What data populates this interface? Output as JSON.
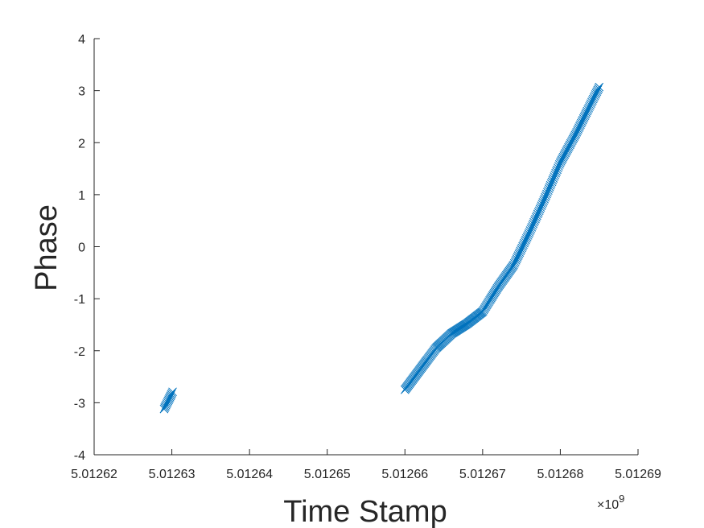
{
  "chart_data": {
    "type": "scatter",
    "marker": "x",
    "marker_color": "#0072BD",
    "axis_color": "#262626",
    "xlabel": "Time Stamp",
    "ylabel": "Phase",
    "x_exponent_label": "×10",
    "x_exponent_power": "9",
    "xlim": [
      5.01262,
      5.01269
    ],
    "ylim": [
      -4,
      4
    ],
    "x_multiplier": 1000000000,
    "xticks": [
      5.01262,
      5.01263,
      5.01264,
      5.01265,
      5.01266,
      5.01267,
      5.01268,
      5.01269
    ],
    "xtick_labels": [
      "5.01262",
      "5.01263",
      "5.01264",
      "5.01265",
      "5.01266",
      "5.01267",
      "5.01268",
      "5.01269"
    ],
    "yticks": [
      -4,
      -3,
      -2,
      -1,
      0,
      1,
      2,
      3,
      4
    ],
    "ytick_labels": [
      "-4",
      "-3",
      "-2",
      "-1",
      "0",
      "1",
      "2",
      "3",
      "4"
    ],
    "grid": false,
    "legend": "none",
    "segments": [
      {
        "x_start": 5.012629,
        "x_end": 5.0126301,
        "curve_x": [
          5.012629,
          5.0126301
        ],
        "curve_y": [
          -3.12,
          -2.79
        ],
        "count": 14
      },
      {
        "x_start": 5.01266,
        "x_end": 5.012685,
        "curve_x": [
          5.01266,
          5.012662,
          5.012664,
          5.012666,
          5.012668,
          5.01267,
          5.012672,
          5.012674,
          5.012676,
          5.012678,
          5.01268,
          5.012682,
          5.012684,
          5.012685
        ],
        "curve_y": [
          -2.75,
          -2.35,
          -1.95,
          -1.67,
          -1.48,
          -1.25,
          -0.77,
          -0.35,
          0.27,
          0.93,
          1.62,
          2.17,
          2.77,
          3.07
        ],
        "count": 260
      }
    ]
  }
}
